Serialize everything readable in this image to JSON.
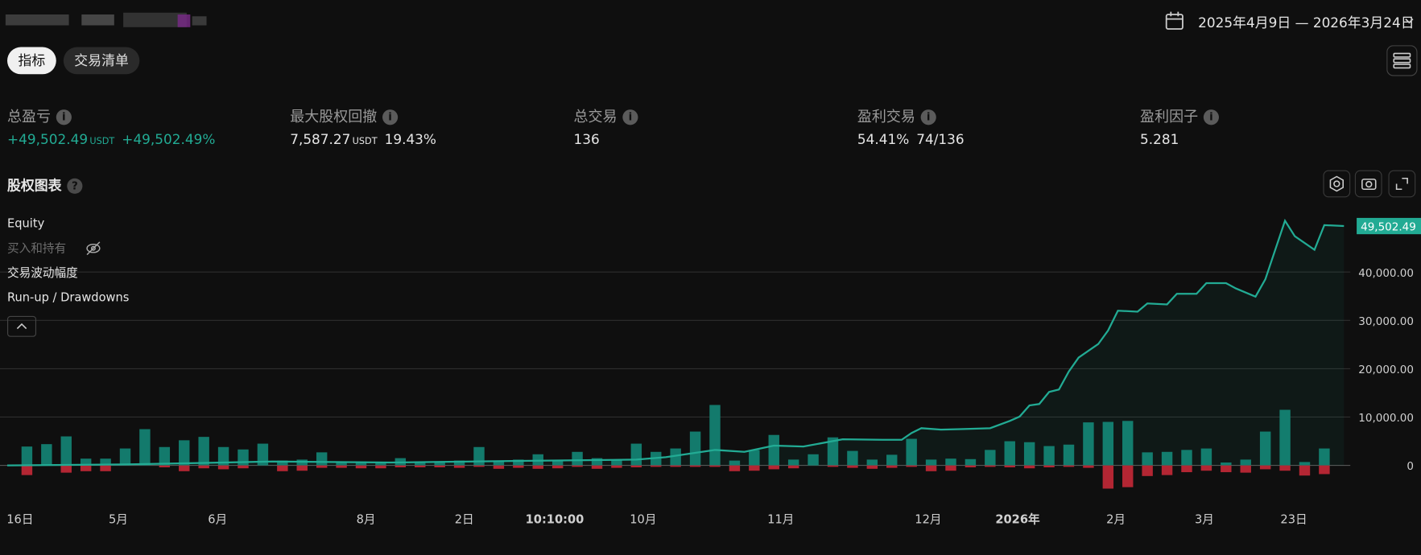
{
  "header": {
    "date_range": "2025年4月9日 — 2026年3月24日"
  },
  "tabs": [
    "指标",
    "交易清单"
  ],
  "metrics": [
    {
      "label": "总盈亏",
      "value": "+49,502.49",
      "unit": "USDT",
      "percent": "+49,502.49%"
    },
    {
      "label": "最大股权回撤",
      "value": "7,587.27",
      "unit": "USDT",
      "percent": "19.43%"
    },
    {
      "label": "总交易",
      "value": "136"
    },
    {
      "label": "盈利交易",
      "value": "54.41%",
      "ratio": "74/136"
    },
    {
      "label": "盈利因子",
      "value": "5.281"
    }
  ],
  "section_title": "股权图表",
  "chart_data": {
    "type": "line",
    "xlim": [
      0,
      136
    ],
    "ylim": [
      -5800,
      52250
    ],
    "grid": true,
    "xticks": [
      {
        "value": 1.3,
        "label": "16日"
      },
      {
        "value": 11.3,
        "label": "5月"
      },
      {
        "value": 21.4,
        "label": "6月"
      },
      {
        "value": 36.5,
        "label": "8月"
      },
      {
        "value": 46.5,
        "label": "2日"
      },
      {
        "value": 55.7,
        "label": "10:10:00"
      },
      {
        "value": 64.7,
        "label": "10月"
      },
      {
        "value": 78.7,
        "label": "11月"
      },
      {
        "value": 93.7,
        "label": "12月"
      },
      {
        "value": 102.8,
        "label": "2026年"
      },
      {
        "value": 112.8,
        "label": "2月"
      },
      {
        "value": 121.8,
        "label": "3月"
      },
      {
        "value": 130.9,
        "label": "23日"
      }
    ],
    "yticks": [
      0,
      {
        "value": 10000,
        "label": "10,000.00"
      },
      {
        "value": 20000,
        "label": "20,000.00"
      },
      {
        "value": 30000,
        "label": "30,000.00"
      },
      {
        "value": 40000,
        "label": "40,000.00"
      }
    ],
    "x": [
      0,
      12,
      27,
      39,
      55,
      64,
      67,
      72,
      75,
      78,
      81,
      85,
      89,
      91,
      92,
      93,
      95,
      97,
      100,
      102,
      103,
      104,
      105,
      106,
      107,
      108,
      109,
      111,
      112,
      113,
      115,
      116,
      118,
      119,
      121,
      122,
      124,
      125,
      127,
      128,
      130,
      131,
      133,
      134,
      136
    ],
    "series": [
      {
        "name": "Equity",
        "color": "#22ab94",
        "end_label": "49,502.49",
        "values": [
          0,
          200,
          800,
          600,
          1000,
          1200,
          1700,
          3200,
          2800,
          4100,
          3900,
          5400,
          5300,
          5300,
          6700,
          7700,
          7400,
          7500,
          7700,
          9200,
          10100,
          12400,
          12700,
          15200,
          15700,
          19400,
          22300,
          25100,
          27900,
          32000,
          31800,
          33500,
          33300,
          35500,
          35500,
          37700,
          37700,
          36600,
          34900,
          38500,
          50600,
          47400,
          44600,
          49700,
          49502.49
        ]
      },
      {
        "name": "买入和持有",
        "hidden": true
      },
      {
        "name": "交易波动幅度"
      },
      {
        "name": "Run-up / Drawdowns",
        "color": "#137a6c",
        "drawdown_color": "#b32633",
        "x": [
          2,
          4,
          6,
          8,
          10,
          12,
          14,
          16,
          18,
          20,
          22,
          24,
          26,
          28,
          30,
          32,
          34,
          36,
          38,
          40,
          42,
          44,
          46,
          48,
          50,
          52,
          54,
          56,
          58,
          60,
          62,
          64,
          66,
          68,
          70,
          72,
          74,
          76,
          78,
          80,
          82,
          84,
          86,
          88,
          90,
          92,
          94,
          96,
          98,
          100,
          102,
          104,
          106,
          108,
          110,
          112,
          114,
          116,
          118,
          120,
          122,
          124,
          126,
          128,
          130,
          132,
          134
        ],
        "values": [
          3900,
          4400,
          6000,
          1400,
          1400,
          3500,
          7500,
          3800,
          5200,
          5900,
          3800,
          3300,
          4500,
          1000,
          1200,
          2700,
          800,
          800,
          600,
          1500,
          700,
          700,
          1000,
          3800,
          1000,
          1200,
          2300,
          1000,
          2800,
          1500,
          1200,
          4500,
          2800,
          3500,
          7000,
          12500,
          1000,
          3200,
          6300,
          1200,
          2300,
          5800,
          3000,
          1200,
          2200,
          5500,
          1200,
          1400,
          1300,
          3200,
          5000,
          4800,
          4000,
          4300,
          8900,
          9000,
          9200,
          2700,
          2800,
          3200,
          3500,
          600,
          1200,
          7000,
          11500,
          700,
          3500
        ],
        "drawdowns": [
          -2000,
          0,
          -1500,
          -1200,
          -1200,
          0,
          0,
          -400,
          -1200,
          -600,
          -800,
          -600,
          0,
          -1200,
          -1100,
          -500,
          -500,
          -600,
          -600,
          -400,
          -400,
          -400,
          -500,
          -300,
          -700,
          -500,
          -700,
          -600,
          -300,
          -700,
          -500,
          -400,
          -300,
          -300,
          -300,
          -300,
          -1200,
          -1100,
          -800,
          -600,
          0,
          -300,
          -500,
          -700,
          -500,
          -300,
          -1200,
          -1100,
          -400,
          -300,
          -400,
          -600,
          -400,
          -300,
          -500,
          -4800,
          -4500,
          -2200,
          -2000,
          -1400,
          -1100,
          -1400,
          -1500,
          -800,
          -1100,
          -2100,
          -1800
        ]
      }
    ]
  }
}
